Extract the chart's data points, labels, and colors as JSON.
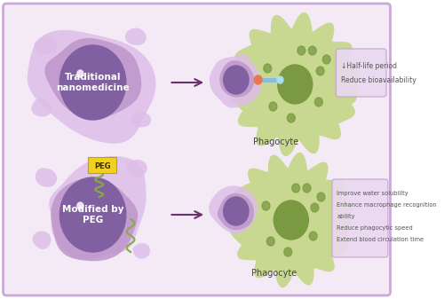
{
  "bg_color": "#f3eaf6",
  "border_color": "#cca8d8",
  "fig_bg": "#ffffff",
  "outer_purple": "#d8b8e8",
  "mid_purple": "#c098d0",
  "dark_purple": "#7b5490",
  "nucleus_purple": "#8060a0",
  "light_green": "#c8d890",
  "nucleus_green": "#8aaa50",
  "dot_green": "#7a9940",
  "top_label": "Traditional\nnanomedicine",
  "bottom_label": "Modified by\nPEG",
  "phagocyte_label": "Phagocyte",
  "peg_label": "PEG",
  "top_box_lines": [
    "↓Half-life period",
    "Reduce bioavailability"
  ],
  "bottom_box_lines": [
    "Improve water solubility",
    "Enhance macrophage recognition",
    "ability",
    "Reduce phagocytic speed",
    "Extend blood circulation time"
  ],
  "arrow_color": "#6b3070"
}
